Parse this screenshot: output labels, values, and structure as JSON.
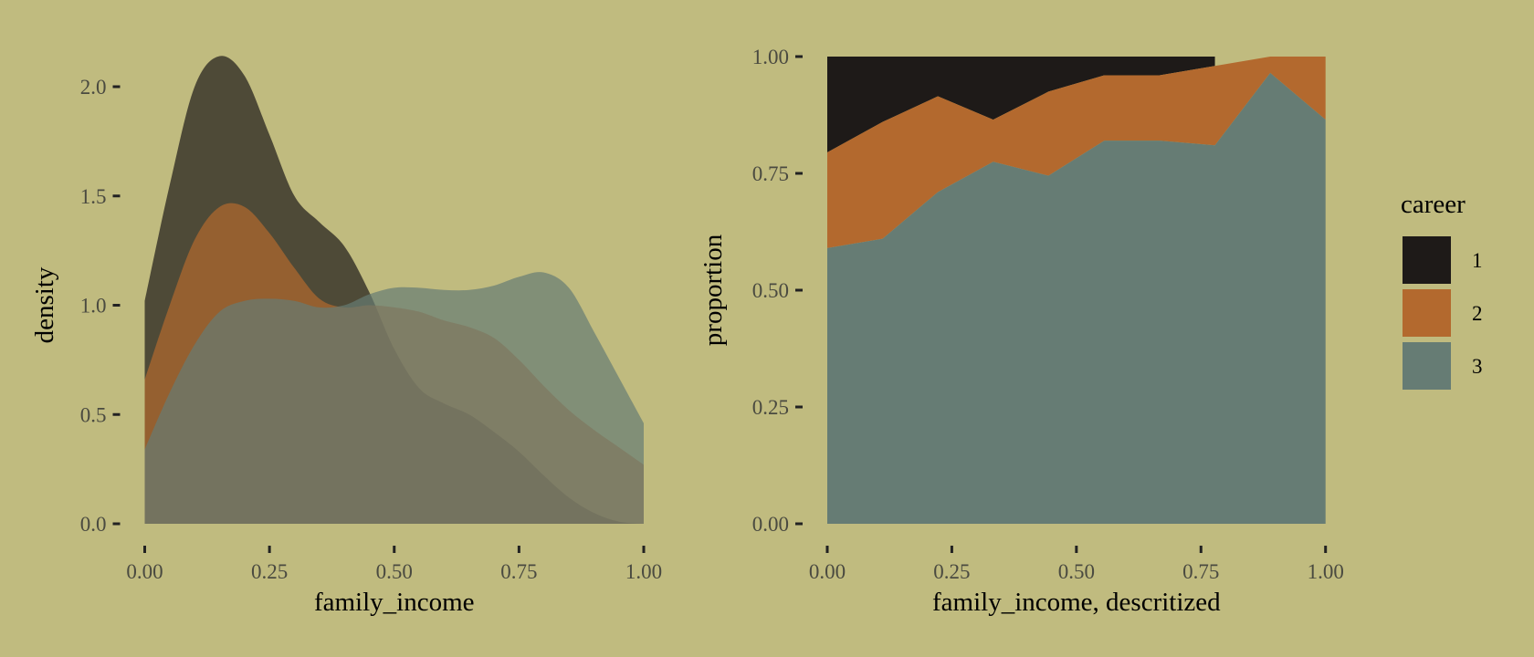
{
  "background": "#c0bb7f",
  "chart_data": [
    {
      "type": "area",
      "subtype": "density",
      "xlabel": "family_income",
      "ylabel": "density",
      "xlim": [
        0,
        1
      ],
      "ylim": [
        0,
        2.2
      ],
      "xticks": [
        "0.00",
        "0.25",
        "0.50",
        "0.75",
        "1.00"
      ],
      "yticks": [
        "0.0",
        "0.5",
        "1.0",
        "1.5",
        "2.0"
      ],
      "grid": false,
      "opacity": 0.7,
      "x": [
        0,
        0.05,
        0.1,
        0.15,
        0.2,
        0.25,
        0.3,
        0.35,
        0.4,
        0.45,
        0.5,
        0.55,
        0.6,
        0.65,
        0.7,
        0.75,
        0.8,
        0.85,
        0.9,
        0.95,
        1.0
      ],
      "series": [
        {
          "name": "1",
          "color": "#1e1a18",
          "values": [
            1.02,
            1.55,
            2.0,
            2.14,
            2.05,
            1.78,
            1.5,
            1.38,
            1.27,
            1.06,
            0.8,
            0.62,
            0.55,
            0.5,
            0.42,
            0.33,
            0.22,
            0.12,
            0.05,
            0.01,
            0.0
          ]
        },
        {
          "name": "2",
          "color": "#b3692e",
          "values": [
            0.66,
            1.0,
            1.3,
            1.45,
            1.45,
            1.33,
            1.17,
            1.03,
            0.99,
            1.0,
            0.99,
            0.97,
            0.93,
            0.9,
            0.85,
            0.75,
            0.63,
            0.52,
            0.43,
            0.35,
            0.27
          ]
        },
        {
          "name": "3",
          "color": "#667c74",
          "values": [
            0.34,
            0.6,
            0.82,
            0.97,
            1.02,
            1.03,
            1.02,
            0.99,
            1.0,
            1.05,
            1.08,
            1.08,
            1.07,
            1.07,
            1.09,
            1.13,
            1.15,
            1.08,
            0.88,
            0.67,
            0.46
          ]
        }
      ]
    },
    {
      "type": "area",
      "subtype": "stacked-proportion",
      "xlabel": "family_income, descritized",
      "ylabel": "proportion",
      "xlim": [
        0,
        1
      ],
      "ylim": [
        0,
        1
      ],
      "xticks": [
        "0.00",
        "0.25",
        "0.50",
        "0.75",
        "1.00"
      ],
      "yticks": [
        "0.00",
        "0.25",
        "0.50",
        "0.75",
        "1.00"
      ],
      "grid": false,
      "x": [
        0,
        0.111,
        0.222,
        0.333,
        0.444,
        0.556,
        0.667,
        0.778,
        0.889,
        1.0
      ],
      "series": [
        {
          "name": "1",
          "color": "#1e1a18",
          "values": [
            0.205,
            0.14,
            0.085,
            0.135,
            0.075,
            0.04,
            0.04,
            0.02,
            0,
            0
          ]
        },
        {
          "name": "2",
          "color": "#b3692e",
          "values": [
            0.205,
            0.25,
            0.205,
            0.09,
            0.18,
            0.14,
            0.14,
            0.17,
            0.035,
            0.135
          ]
        },
        {
          "name": "3",
          "color": "#667c74",
          "values": [
            0.59,
            0.61,
            0.71,
            0.775,
            0.745,
            0.82,
            0.82,
            0.81,
            0.965,
            0.865
          ]
        }
      ],
      "black_band_ends_at": 0.778
    }
  ],
  "legend": {
    "title": "career",
    "placement": "right",
    "items": [
      {
        "label": "1",
        "color": "#1e1a18"
      },
      {
        "label": "2",
        "color": "#b3692e"
      },
      {
        "label": "3",
        "color": "#667c74"
      }
    ]
  }
}
